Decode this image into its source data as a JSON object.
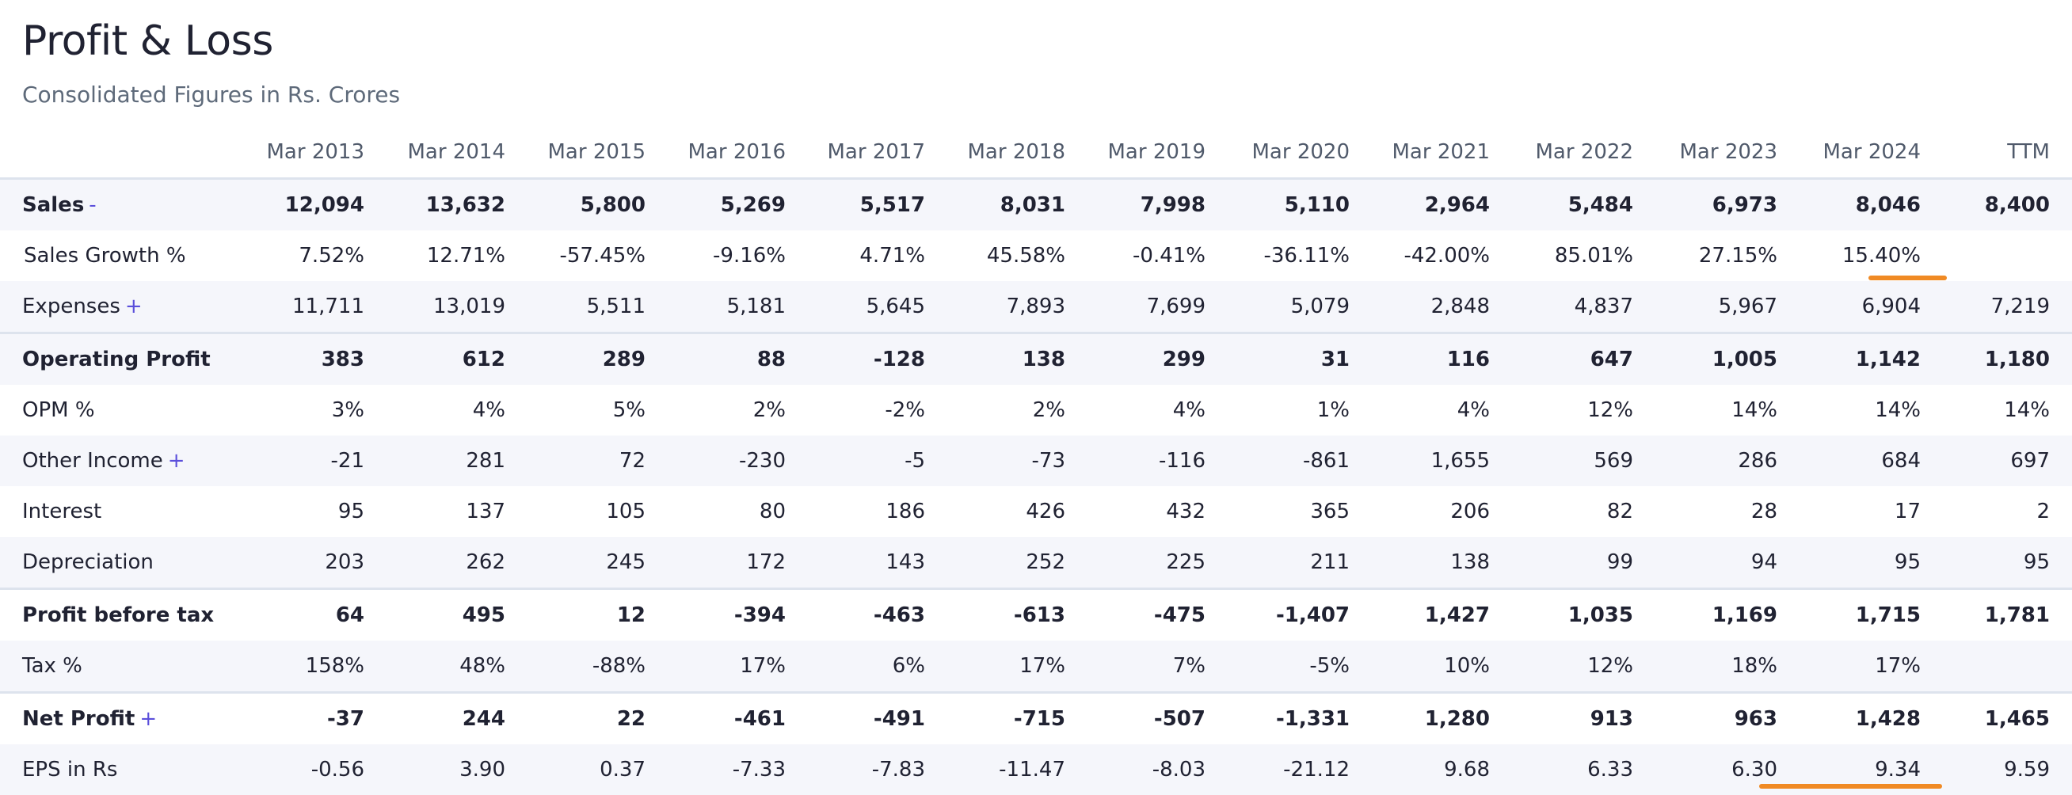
{
  "header": {
    "title": "Profit & Loss",
    "subtitle": "Consolidated Figures in Rs. Crores"
  },
  "table": {
    "columns": [
      "Mar 2013",
      "Mar 2014",
      "Mar 2015",
      "Mar 2016",
      "Mar 2017",
      "Mar 2018",
      "Mar 2019",
      "Mar 2020",
      "Mar 2021",
      "Mar 2022",
      "Mar 2023",
      "Mar 2024",
      "TTM"
    ],
    "rows": [
      {
        "label": "Sales",
        "toggle": "-",
        "values": [
          "12,094",
          "13,632",
          "5,800",
          "5,269",
          "5,517",
          "8,031",
          "7,998",
          "5,110",
          "2,964",
          "5,484",
          "6,973",
          "8,046",
          "8,400"
        ]
      },
      {
        "label": "Sales Growth %",
        "toggle": "",
        "values": [
          "7.52%",
          "12.71%",
          "-57.45%",
          "-9.16%",
          "4.71%",
          "45.58%",
          "-0.41%",
          "-36.11%",
          "-42.00%",
          "85.01%",
          "27.15%",
          "15.40%",
          ""
        ]
      },
      {
        "label": "Expenses",
        "toggle": "+",
        "values": [
          "11,711",
          "13,019",
          "5,511",
          "5,181",
          "5,645",
          "7,893",
          "7,699",
          "5,079",
          "2,848",
          "4,837",
          "5,967",
          "6,904",
          "7,219"
        ]
      },
      {
        "label": "Operating Profit",
        "toggle": "",
        "values": [
          "383",
          "612",
          "289",
          "88",
          "-128",
          "138",
          "299",
          "31",
          "116",
          "647",
          "1,005",
          "1,142",
          "1,180"
        ]
      },
      {
        "label": "OPM %",
        "toggle": "",
        "values": [
          "3%",
          "4%",
          "5%",
          "2%",
          "-2%",
          "2%",
          "4%",
          "1%",
          "4%",
          "12%",
          "14%",
          "14%",
          "14%"
        ]
      },
      {
        "label": "Other Income",
        "toggle": "+",
        "values": [
          "-21",
          "281",
          "72",
          "-230",
          "-5",
          "-73",
          "-116",
          "-861",
          "1,655",
          "569",
          "286",
          "684",
          "697"
        ]
      },
      {
        "label": "Interest",
        "toggle": "",
        "values": [
          "95",
          "137",
          "105",
          "80",
          "186",
          "426",
          "432",
          "365",
          "206",
          "82",
          "28",
          "17",
          "2"
        ]
      },
      {
        "label": "Depreciation",
        "toggle": "",
        "values": [
          "203",
          "262",
          "245",
          "172",
          "143",
          "252",
          "225",
          "211",
          "138",
          "99",
          "94",
          "95",
          "95"
        ]
      },
      {
        "label": "Profit before tax",
        "toggle": "",
        "values": [
          "64",
          "495",
          "12",
          "-394",
          "-463",
          "-613",
          "-475",
          "-1,407",
          "1,427",
          "1,035",
          "1,169",
          "1,715",
          "1,781"
        ]
      },
      {
        "label": "Tax %",
        "toggle": "",
        "values": [
          "158%",
          "48%",
          "-88%",
          "17%",
          "6%",
          "17%",
          "7%",
          "-5%",
          "10%",
          "12%",
          "18%",
          "17%",
          ""
        ]
      },
      {
        "label": "Net Profit",
        "toggle": "+",
        "values": [
          "-37",
          "244",
          "22",
          "-461",
          "-491",
          "-715",
          "-507",
          "-1,331",
          "1,280",
          "913",
          "963",
          "1,428",
          "1,465"
        ]
      },
      {
        "label": "EPS in Rs",
        "toggle": "",
        "values": [
          "-0.56",
          "3.90",
          "0.37",
          "-7.33",
          "-7.83",
          "-11.47",
          "-8.03",
          "-21.12",
          "9.68",
          "6.33",
          "6.30",
          "9.34",
          "9.59"
        ]
      }
    ]
  },
  "colors": {
    "toggle": "#5b4fdb",
    "highlight": "#f08a24",
    "row_shade": "#f5f6fb",
    "divider": "#dde3ed"
  }
}
